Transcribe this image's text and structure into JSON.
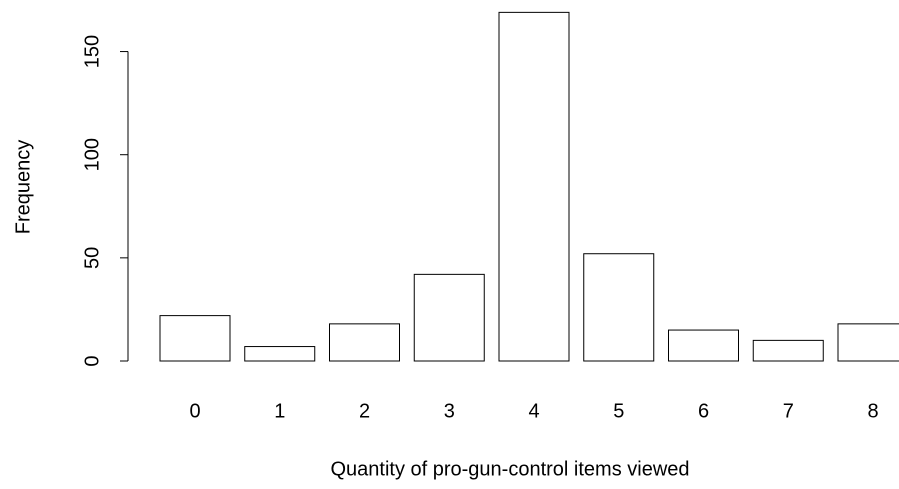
{
  "chart_data": {
    "type": "bar",
    "xlabel": "Quantity of pro-gun-control items viewed",
    "ylabel": "Frequency",
    "categories": [
      "0",
      "1",
      "2",
      "3",
      "4",
      "5",
      "6",
      "7",
      "8"
    ],
    "values": [
      22,
      7,
      18,
      42,
      169,
      52,
      15,
      10,
      18
    ],
    "color": "#ffffff",
    "ylim": [
      0,
      170
    ],
    "yticks": [
      0,
      50,
      100,
      150
    ],
    "grid": false
  }
}
